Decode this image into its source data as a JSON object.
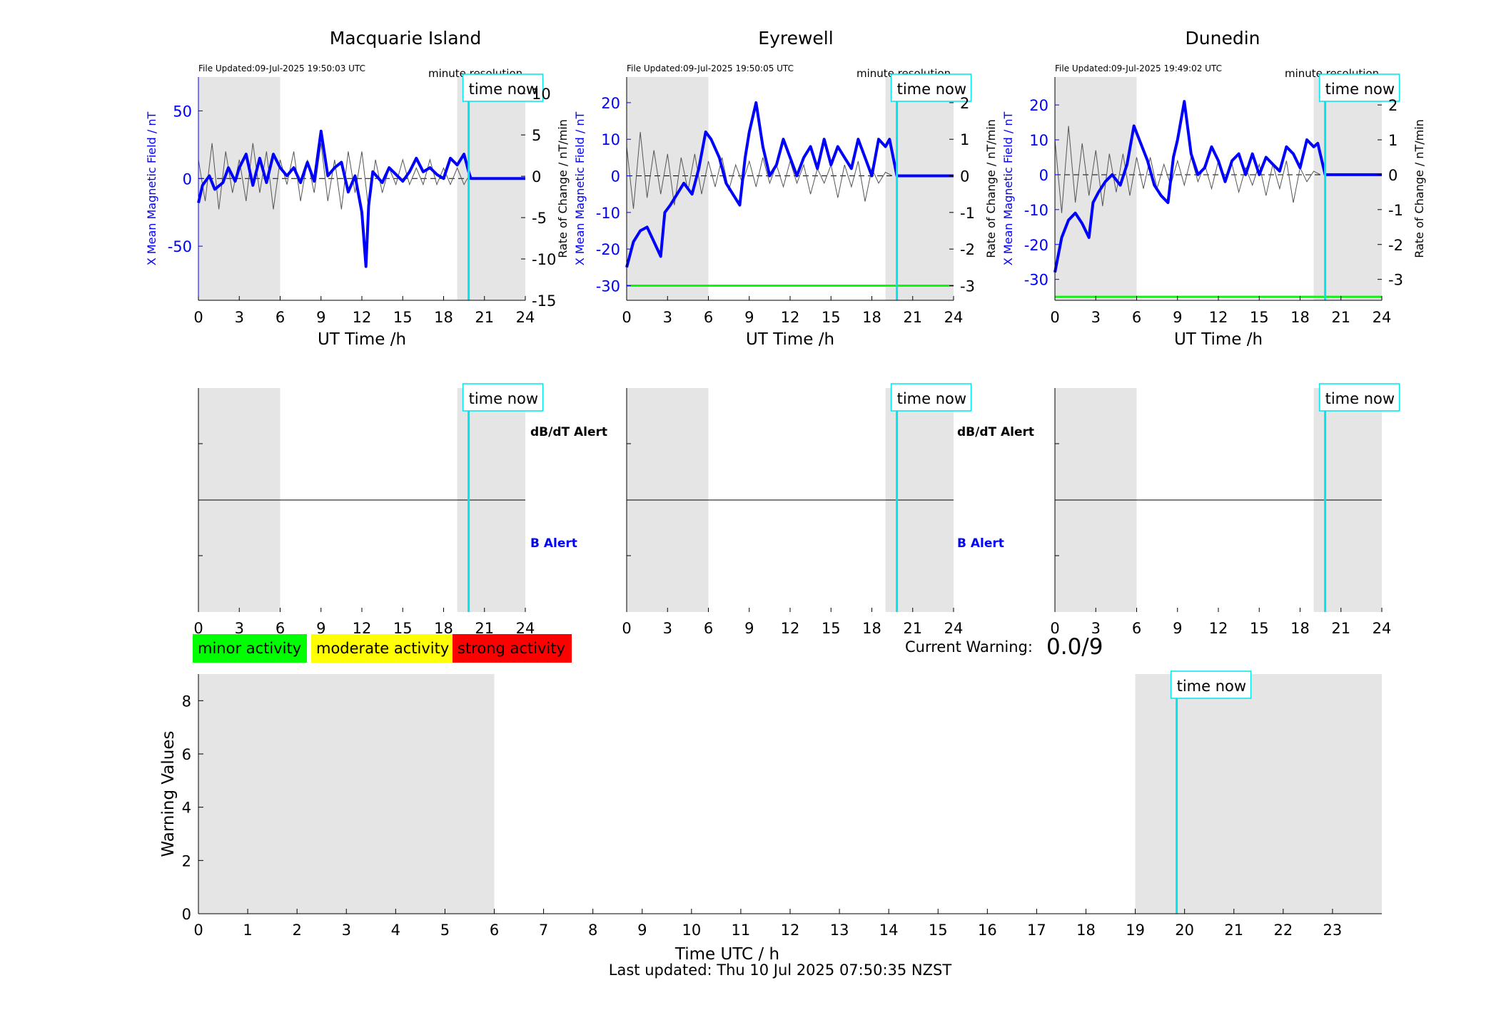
{
  "colors": {
    "accent_blue": "#0000ff",
    "time_now": "#00e5ee",
    "shade": "#e5e5e5",
    "threshold_green": "#00ff00",
    "minor": "#00ff00",
    "moderate": "#ffff00",
    "strong": "#ff0000"
  },
  "time_now_label": "time now",
  "minute_resolution_label": "minute resolution",
  "top_xlabel": "UT Time /h",
  "ylabel_left": "X Mean Magnetic Field / nT",
  "ylabel_right": "Rate of Change / nT/min",
  "alert_labels": {
    "dbdt": "dB/dT Alert",
    "b": "B Alert"
  },
  "legend": {
    "minor": "minor activity",
    "moderate": "moderate activity",
    "strong": "strong activity"
  },
  "current_warning": {
    "label": "Current Warning:",
    "value": "0.0/9"
  },
  "footer": {
    "last_updated": "Last updated: Thu 10 Jul 2025 07:50:35 NZST"
  },
  "chart_data": [
    {
      "type": "line",
      "station": "Macquarie Island",
      "file_updated": "File Updated:09-Jul-2025 19:50:03 UTC",
      "xlabel": "UT Time /h",
      "ylabel_left": "X Mean Magnetic Field / nT",
      "ylabel_right": "Rate of Change / nT/min",
      "xlim": [
        0,
        24
      ],
      "ylim_left": [
        -90,
        75
      ],
      "ylim_right": [
        -15,
        12
      ],
      "xticks": [
        0,
        3,
        6,
        9,
        12,
        15,
        18,
        21,
        24
      ],
      "yticks_left": [
        -50,
        0,
        50
      ],
      "yticks_right": [
        -15,
        -10,
        -5,
        0,
        5,
        10
      ],
      "shaded_ut_hours": [
        [
          0,
          6
        ],
        [
          19,
          24
        ]
      ],
      "time_now_ut": 19.84,
      "threshold_left": null,
      "series_mean_field": {
        "x": [
          0,
          0.3,
          0.8,
          1.2,
          1.8,
          2.2,
          2.7,
          3.0,
          3.5,
          4.0,
          4.5,
          5.0,
          5.5,
          6.0,
          6.5,
          7.0,
          7.5,
          8.0,
          8.5,
          9.0,
          9.5,
          10.0,
          10.5,
          11.0,
          11.5,
          12.0,
          12.3,
          12.5,
          12.8,
          13.5,
          14.0,
          15.0,
          15.5,
          16.0,
          16.5,
          17.0,
          17.5,
          18.0,
          18.5,
          19.0,
          19.5,
          19.84,
          20.0,
          24.0
        ],
        "y": [
          -18,
          -5,
          2,
          -8,
          -3,
          8,
          -2,
          8,
          18,
          -5,
          15,
          -3,
          18,
          8,
          2,
          8,
          -3,
          12,
          -2,
          35,
          2,
          8,
          12,
          -10,
          2,
          -25,
          -65,
          -20,
          5,
          -3,
          8,
          -2,
          5,
          15,
          5,
          8,
          3,
          0,
          15,
          10,
          18,
          5,
          0,
          0
        ]
      },
      "series_rate_of_change": {
        "x": [
          0,
          0.5,
          1,
          1.5,
          2,
          2.5,
          3,
          3.5,
          4,
          4.5,
          5,
          5.5,
          6,
          6.5,
          7,
          7.5,
          8,
          8.5,
          9,
          9.5,
          10,
          10.5,
          11,
          11.5,
          12,
          12.5,
          13,
          13.5,
          14,
          14.5,
          15,
          15.5,
          16,
          16.5,
          17,
          17.5,
          18,
          18.5,
          19,
          19.5,
          19.84
        ],
        "y": [
          2,
          -3,
          4,
          -4,
          3,
          -2,
          2,
          -3,
          4,
          -2,
          3,
          -4,
          2,
          -1,
          3,
          -3,
          2,
          -2,
          4,
          -3,
          2,
          -4,
          3,
          -2,
          3,
          -4,
          2,
          -2,
          1,
          -1,
          2,
          -1,
          1,
          -1,
          2,
          -1,
          1,
          -1,
          1,
          -1,
          0
        ]
      }
    },
    {
      "type": "line",
      "station": "Eyrewell",
      "file_updated": "File Updated:09-Jul-2025 19:50:05 UTC",
      "xlabel": "UT Time /h",
      "ylabel_left": "X Mean Magnetic Field / nT",
      "ylabel_right": "Rate of Change / nT/min",
      "xlim": [
        0,
        24
      ],
      "ylim_left": [
        -34,
        27
      ],
      "ylim_right": [
        -3.4,
        2.7
      ],
      "xticks": [
        0,
        3,
        6,
        9,
        12,
        15,
        18,
        21,
        24
      ],
      "yticks_left": [
        -30,
        -20,
        -10,
        0,
        10,
        20
      ],
      "yticks_right": [
        -3,
        -2,
        -1,
        0,
        1,
        2
      ],
      "shaded_ut_hours": [
        [
          0,
          6
        ],
        [
          19,
          24
        ]
      ],
      "time_now_ut": 19.84,
      "threshold_left": -30,
      "series_mean_field": {
        "x": [
          0,
          0.5,
          1.0,
          1.5,
          2.0,
          2.5,
          2.8,
          3.2,
          3.7,
          4.2,
          4.8,
          5.3,
          5.8,
          6.2,
          6.8,
          7.3,
          7.8,
          8.3,
          8.7,
          9.0,
          9.5,
          10.0,
          10.5,
          11.0,
          11.5,
          12.0,
          12.5,
          13.0,
          13.5,
          14.0,
          14.5,
          15.0,
          15.5,
          16.0,
          16.5,
          17.0,
          17.5,
          18.0,
          18.5,
          19.0,
          19.3,
          19.84,
          20.0,
          24.0
        ],
        "y": [
          -25,
          -18,
          -15,
          -14,
          -18,
          -22,
          -10,
          -8,
          -5,
          -2,
          -5,
          2,
          12,
          10,
          5,
          -2,
          -5,
          -8,
          5,
          12,
          20,
          8,
          0,
          3,
          10,
          5,
          0,
          5,
          8,
          2,
          10,
          3,
          8,
          5,
          2,
          10,
          5,
          0,
          10,
          8,
          10,
          0,
          0,
          0
        ]
      },
      "series_rate_of_change": {
        "x": [
          0,
          0.5,
          1,
          1.5,
          2,
          2.5,
          3,
          3.5,
          4,
          4.5,
          5,
          5.5,
          6,
          6.5,
          7,
          7.5,
          8,
          8.5,
          9,
          9.5,
          10,
          10.5,
          11,
          11.5,
          12,
          12.5,
          13,
          13.5,
          14,
          14.5,
          15,
          15.5,
          16,
          16.5,
          17,
          17.5,
          18,
          18.5,
          19,
          19.5
        ],
        "y": [
          0.8,
          -0.9,
          1.2,
          -0.6,
          0.7,
          -0.5,
          0.6,
          -0.8,
          0.5,
          -0.4,
          0.6,
          -0.5,
          0.4,
          -0.3,
          0.5,
          -0.4,
          0.3,
          -0.2,
          0.4,
          -0.3,
          0.5,
          -0.2,
          0.3,
          -0.3,
          0.4,
          -0.2,
          0.3,
          -0.5,
          0.2,
          -0.2,
          0.3,
          -0.6,
          0.3,
          -0.3,
          0.4,
          -0.7,
          0.2,
          -0.2,
          0.1,
          0
        ]
      }
    },
    {
      "type": "line",
      "station": "Dunedin",
      "file_updated": "File Updated:09-Jul-2025 19:49:02 UTC",
      "xlabel": "UT Time /h",
      "ylabel_left": "X Mean Magnetic Field / nT",
      "ylabel_right": "Rate of Change / nT/min",
      "xlim": [
        0,
        24
      ],
      "ylim_left": [
        -36,
        28
      ],
      "ylim_right": [
        -3.6,
        2.8
      ],
      "xticks": [
        0,
        3,
        6,
        9,
        12,
        15,
        18,
        21,
        24
      ],
      "yticks_left": [
        -30,
        -20,
        -10,
        0,
        10,
        20
      ],
      "yticks_right": [
        -3,
        -2,
        -1,
        0,
        1,
        2
      ],
      "shaded_ut_hours": [
        [
          0,
          6
        ],
        [
          19,
          24
        ]
      ],
      "time_now_ut": 19.84,
      "threshold_left": -35,
      "series_mean_field": {
        "x": [
          0,
          0.5,
          1.0,
          1.5,
          2.0,
          2.5,
          2.8,
          3.2,
          3.7,
          4.2,
          4.8,
          5.3,
          5.8,
          6.2,
          6.8,
          7.3,
          7.8,
          8.3,
          8.7,
          9.0,
          9.5,
          10.0,
          10.5,
          11.0,
          11.5,
          12.0,
          12.5,
          13.0,
          13.5,
          14.0,
          14.5,
          15.0,
          15.5,
          16.0,
          16.5,
          17.0,
          17.5,
          18.0,
          18.5,
          19.0,
          19.3,
          19.84,
          20.0,
          24.0
        ],
        "y": [
          -28,
          -18,
          -13,
          -11,
          -14,
          -18,
          -8,
          -5,
          -2,
          0,
          -3,
          3,
          14,
          10,
          4,
          -3,
          -6,
          -8,
          5,
          10,
          21,
          6,
          0,
          2,
          8,
          4,
          -2,
          4,
          6,
          0,
          6,
          0,
          5,
          3,
          1,
          8,
          6,
          2,
          10,
          8,
          9,
          0,
          0,
          0
        ]
      },
      "series_rate_of_change": {
        "x": [
          0,
          0.5,
          1,
          1.5,
          2,
          2.5,
          3,
          3.5,
          4,
          4.5,
          5,
          5.5,
          6,
          6.5,
          7,
          7.5,
          8,
          8.5,
          9,
          9.5,
          10,
          10.5,
          11,
          11.5,
          12,
          12.5,
          13,
          13.5,
          14,
          14.5,
          15,
          15.5,
          16,
          16.5,
          17,
          17.5,
          18,
          18.5,
          19,
          19.5
        ],
        "y": [
          1.0,
          -1.1,
          1.4,
          -0.8,
          0.9,
          -0.6,
          0.7,
          -0.9,
          0.6,
          -0.5,
          0.6,
          -0.6,
          0.5,
          -0.4,
          0.5,
          -0.4,
          0.3,
          -0.3,
          0.4,
          -0.3,
          0.5,
          -0.2,
          0.3,
          -0.4,
          0.4,
          -0.2,
          0.3,
          -0.5,
          0.2,
          -0.3,
          0.3,
          -0.6,
          0.3,
          -0.4,
          0.4,
          -0.8,
          0.2,
          -0.2,
          0.1,
          0
        ]
      }
    },
    {
      "type": "line",
      "xlabel": "Time UTC / h",
      "ylabel": "Warning Values",
      "xlim": [
        0,
        24
      ],
      "ylim": [
        0,
        9
      ],
      "xticks": [
        0,
        1,
        2,
        3,
        4,
        5,
        6,
        7,
        8,
        9,
        10,
        11,
        12,
        13,
        14,
        15,
        16,
        17,
        18,
        19,
        20,
        21,
        22,
        23
      ],
      "yticks": [
        0,
        2,
        4,
        6,
        8
      ],
      "shaded_ut_hours": [
        [
          0,
          6
        ],
        [
          19,
          24
        ]
      ],
      "time_now_ut": 19.84,
      "series": []
    }
  ]
}
